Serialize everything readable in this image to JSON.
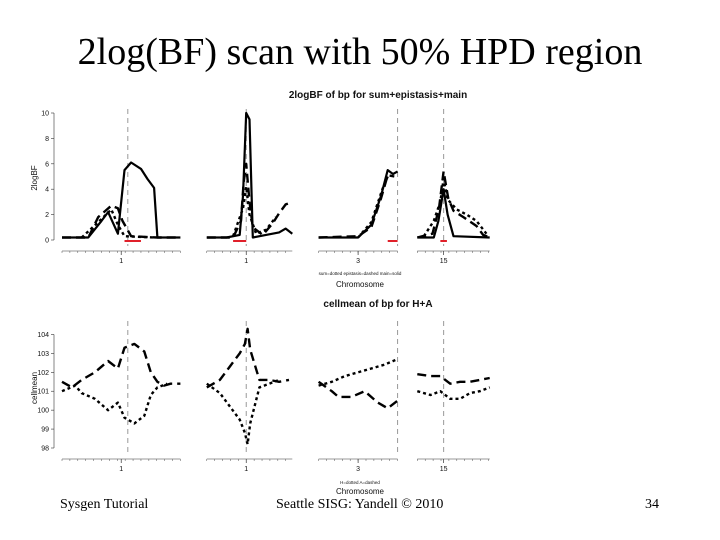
{
  "slide": {
    "title": "2log(BF) scan with 50% HPD region",
    "footer_left": "Sysgen Tutorial",
    "footer_center": "Seattle SISG: Yandell © 2010",
    "footer_right": "34"
  },
  "chart_data": [
    {
      "type": "line",
      "title": "2logBF of bp for sum+epistasis+main",
      "ylabel": "2logBF",
      "xlabel": "Chromosome",
      "legend": "sum=dotted epistasis=dashed main=solid",
      "legend_position": "bottom-center",
      "grid": false,
      "ylim": [
        0,
        10
      ],
      "yticks": [
        0,
        2,
        4,
        6,
        8,
        10
      ],
      "x_domain": [
        0,
        100
      ],
      "chromosomes": [
        {
          "label": "1",
          "range": [
            0,
            18
          ],
          "tick": 9,
          "qtl": 10
        },
        {
          "label": "1",
          "range": [
            22,
            35
          ],
          "tick": 28,
          "qtl": 28
        },
        {
          "label": "3",
          "range": [
            39,
            51
          ],
          "tick": 45,
          "qtl": 51
        },
        {
          "label": "15",
          "range": [
            54,
            65
          ],
          "tick": 58,
          "qtl": 58
        }
      ],
      "hpd_regions": [
        [
          9.5,
          12
        ],
        [
          26,
          28
        ],
        [
          49.5,
          51
        ],
        [
          57.5,
          58.5
        ]
      ],
      "hpd_color": "#e0202a",
      "series": [
        {
          "style": "solid",
          "points": [
            [
              0,
              0.2
            ],
            [
              4,
              0.2
            ],
            [
              6,
              1.5
            ],
            [
              7,
              2.2
            ],
            [
              8.5,
              0.5
            ],
            [
              9.5,
              5.5
            ],
            [
              10.5,
              6.1
            ],
            [
              12,
              5.6
            ],
            [
              13,
              4.8
            ],
            [
              14,
              4.1
            ],
            [
              14.5,
              0.2
            ],
            [
              18,
              0.2
            ]
          ]
        },
        {
          "style": "dashed",
          "points": [
            [
              0,
              0.2
            ],
            [
              4,
              0.2
            ],
            [
              5.5,
              1.8
            ],
            [
              7.5,
              2.7
            ],
            [
              8.5,
              2.5
            ],
            [
              9.2,
              1.5
            ],
            [
              10.5,
              0.3
            ],
            [
              14.5,
              0.2
            ],
            [
              18,
              0.2
            ]
          ]
        },
        {
          "style": "dotted",
          "points": [
            [
              3,
              0.2
            ],
            [
              5.5,
              1.4
            ],
            [
              7.5,
              2.4
            ],
            [
              8.5,
              1.2
            ],
            [
              9.5,
              0.3
            ],
            [
              14,
              0.2
            ]
          ]
        },
        {
          "style": "solid",
          "points": [
            [
              22,
              0.2
            ],
            [
              25,
              0.2
            ],
            [
              27,
              0.4
            ],
            [
              27.5,
              3.5
            ],
            [
              28,
              10
            ],
            [
              28.5,
              9.5
            ],
            [
              29,
              0.2
            ],
            [
              31,
              0.4
            ],
            [
              33,
              0.6
            ],
            [
              34,
              0.9
            ],
            [
              35,
              0.5
            ]
          ]
        },
        {
          "style": "dashed",
          "points": [
            [
              22,
              0.2
            ],
            [
              26,
              0.2
            ],
            [
              27.2,
              1.5
            ],
            [
              27.6,
              4.5
            ],
            [
              28,
              6
            ],
            [
              28.5,
              3
            ],
            [
              29,
              1
            ],
            [
              30.5,
              0.4
            ],
            [
              32,
              1.3
            ],
            [
              33,
              2.1
            ],
            [
              34,
              2.8
            ],
            [
              35,
              3
            ]
          ]
        },
        {
          "style": "dotted",
          "points": [
            [
              26,
              0.3
            ],
            [
              27.5,
              2.5
            ],
            [
              28,
              4.2
            ],
            [
              28.5,
              2
            ],
            [
              29.5,
              0.5
            ],
            [
              31,
              0.8
            ],
            [
              32.5,
              1.8
            ]
          ]
        },
        {
          "style": "solid",
          "points": [
            [
              39,
              0.2
            ],
            [
              45,
              0.2
            ],
            [
              47,
              1.2
            ],
            [
              48.5,
              3.5
            ],
            [
              49.5,
              5.5
            ],
            [
              50.3,
              5.2
            ],
            [
              51,
              5.4
            ]
          ]
        },
        {
          "style": "dashed",
          "points": [
            [
              39,
              0.2
            ],
            [
              45,
              0.3
            ],
            [
              47,
              1
            ],
            [
              48.5,
              3.3
            ],
            [
              49.5,
              5.1
            ],
            [
              50.5,
              5
            ]
          ]
        },
        {
          "style": "dotted",
          "points": [
            [
              45,
              0.2
            ],
            [
              47,
              1.4
            ],
            [
              48.7,
              4
            ],
            [
              49.5,
              5
            ]
          ]
        },
        {
          "style": "solid",
          "points": [
            [
              54,
              0.2
            ],
            [
              56.5,
              0.2
            ],
            [
              57.2,
              1.5
            ],
            [
              58,
              4
            ],
            [
              58.6,
              2
            ],
            [
              59.5,
              0.3
            ],
            [
              65,
              0.2
            ]
          ]
        },
        {
          "style": "dashed",
          "points": [
            [
              54,
              0.2
            ],
            [
              56.3,
              0.5
            ],
            [
              57.3,
              2.5
            ],
            [
              58,
              5.4
            ],
            [
              58.7,
              3.3
            ],
            [
              59.5,
              2.3
            ],
            [
              61,
              1.8
            ],
            [
              63,
              1.1
            ],
            [
              64,
              0.4
            ],
            [
              65,
              0.2
            ]
          ]
        },
        {
          "style": "dotted",
          "points": [
            [
              55,
              0.3
            ],
            [
              56.5,
              1.5
            ],
            [
              57.5,
              3
            ],
            [
              58,
              4.8
            ],
            [
              58.6,
              3.2
            ],
            [
              60,
              2.4
            ],
            [
              61.5,
              2
            ],
            [
              63,
              1.5
            ],
            [
              64.5,
              0.5
            ]
          ]
        }
      ]
    },
    {
      "type": "line",
      "title": "cellmean of bp for H+A",
      "ylabel": "cellmean",
      "xlabel": "Chromosome",
      "legend": "H=dotted A=dashed",
      "legend_position": "bottom-center",
      "grid": false,
      "ylim": [
        98,
        104.5
      ],
      "yticks": [
        98,
        99,
        100,
        101,
        102,
        103,
        104
      ],
      "x_domain": [
        0,
        100
      ],
      "chromosomes": [
        {
          "label": "1",
          "range": [
            0,
            18
          ],
          "tick": 9,
          "qtl": 10
        },
        {
          "label": "1",
          "range": [
            22,
            35
          ],
          "tick": 28,
          "qtl": 28
        },
        {
          "label": "3",
          "range": [
            39,
            51
          ],
          "tick": 45,
          "qtl": 51
        },
        {
          "label": "15",
          "range": [
            54,
            65
          ],
          "tick": 58,
          "qtl": 58
        }
      ],
      "series": [
        {
          "style": "dashed",
          "points": [
            [
              0,
              101.5
            ],
            [
              1.5,
              101.2
            ],
            [
              3,
              101.6
            ],
            [
              5,
              102
            ],
            [
              7,
              102.6
            ],
            [
              8.5,
              102.2
            ],
            [
              9.5,
              103.3
            ],
            [
              11,
              103.5
            ],
            [
              12.5,
              103.1
            ],
            [
              13.5,
              102
            ],
            [
              14.5,
              101.5
            ],
            [
              15.5,
              101.3
            ],
            [
              16.5,
              101.4
            ],
            [
              18,
              101.4
            ]
          ]
        },
        {
          "style": "dotted",
          "points": [
            [
              0,
              101
            ],
            [
              2,
              101.3
            ],
            [
              3,
              100.9
            ],
            [
              5,
              100.6
            ],
            [
              7,
              100
            ],
            [
              8.5,
              100.4
            ],
            [
              9.5,
              99.6
            ],
            [
              11,
              99.3
            ],
            [
              12.5,
              99.7
            ],
            [
              13.5,
              100.8
            ],
            [
              14.5,
              101.2
            ],
            [
              16,
              101.4
            ]
          ]
        },
        {
          "style": "dashed",
          "points": [
            [
              22,
              101.2
            ],
            [
              24,
              101.6
            ],
            [
              25.5,
              102.3
            ],
            [
              27,
              103
            ],
            [
              27.8,
              103.5
            ],
            [
              28.2,
              104.3
            ],
            [
              28.6,
              103.2
            ],
            [
              30,
              101.6
            ],
            [
              31.5,
              101.6
            ],
            [
              33,
              101.5
            ],
            [
              34.5,
              101.6
            ]
          ]
        },
        {
          "style": "dotted",
          "points": [
            [
              22,
              101.4
            ],
            [
              24,
              100.9
            ],
            [
              25.5,
              100.2
            ],
            [
              27,
              99.5
            ],
            [
              27.8,
              98.8
            ],
            [
              28.2,
              98.2
            ],
            [
              28.6,
              99.3
            ],
            [
              30,
              101.2
            ],
            [
              31.5,
              101.4
            ],
            [
              33,
              101.6
            ]
          ]
        },
        {
          "style": "dashed",
          "points": [
            [
              39,
              101.5
            ],
            [
              41,
              101
            ],
            [
              42,
              100.7
            ],
            [
              44,
              100.7
            ],
            [
              46,
              101
            ],
            [
              48,
              100.4
            ],
            [
              49.5,
              100.1
            ],
            [
              51,
              100.5
            ]
          ]
        },
        {
          "style": "dotted",
          "points": [
            [
              39,
              101.3
            ],
            [
              41,
              101.5
            ],
            [
              43,
              101.8
            ],
            [
              45,
              102
            ],
            [
              47,
              102.2
            ],
            [
              49,
              102.4
            ],
            [
              51,
              102.7
            ]
          ]
        },
        {
          "style": "dashed",
          "points": [
            [
              54,
              101.9
            ],
            [
              56,
              101.8
            ],
            [
              57.5,
              101.8
            ],
            [
              59,
              101.4
            ],
            [
              60.5,
              101.5
            ],
            [
              62,
              101.5
            ],
            [
              63.5,
              101.6
            ],
            [
              65,
              101.7
            ]
          ]
        },
        {
          "style": "dotted",
          "points": [
            [
              54,
              101
            ],
            [
              56,
              100.8
            ],
            [
              57.5,
              101
            ],
            [
              59,
              100.6
            ],
            [
              60.5,
              100.6
            ],
            [
              62,
              100.9
            ],
            [
              63.5,
              101
            ],
            [
              65,
              101.2
            ]
          ]
        }
      ]
    }
  ]
}
